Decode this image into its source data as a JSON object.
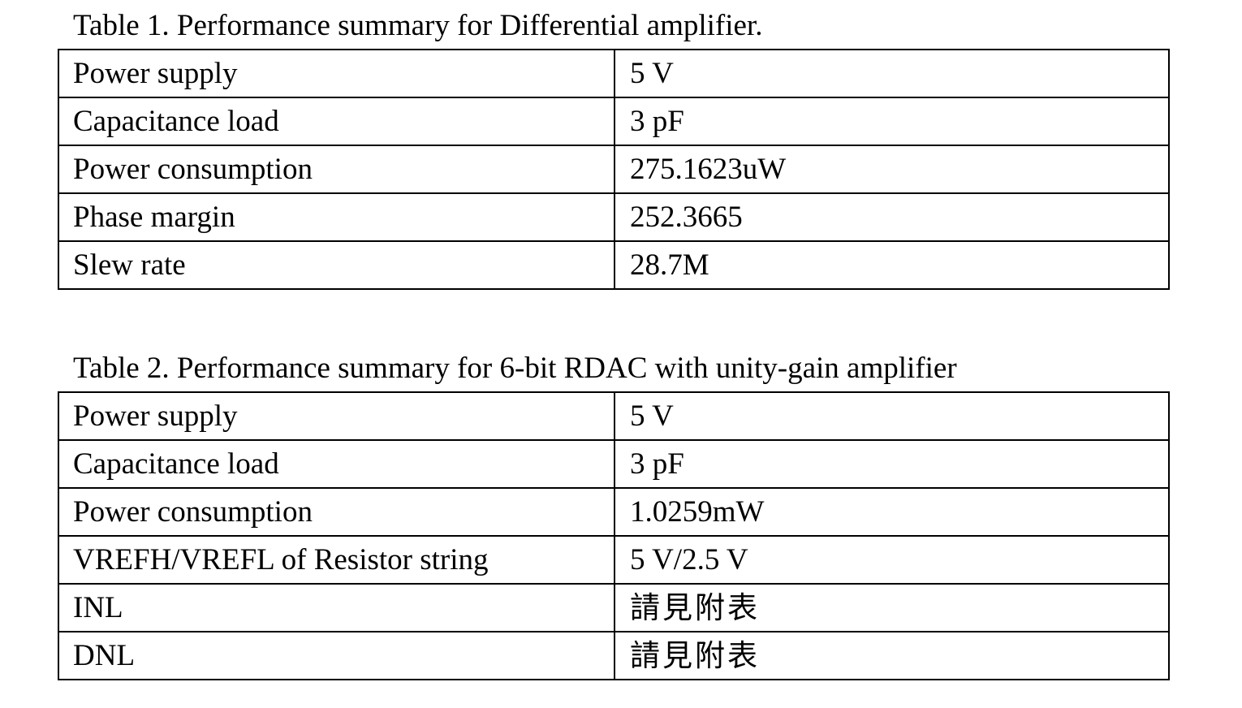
{
  "table1": {
    "caption": "Table 1. Performance summary for Differential amplifier.",
    "rows": [
      {
        "param": "Power supply",
        "value": "5 V"
      },
      {
        "param": "Capacitance load",
        "value": "3 pF"
      },
      {
        "param": "Power consumption",
        "value": "275.1623uW"
      },
      {
        "param": "Phase margin",
        "value": "252.3665"
      },
      {
        "param": "Slew rate",
        "value": "28.7M"
      }
    ]
  },
  "table2": {
    "caption": "Table 2. Performance summary for 6-bit RDAC with unity-gain amplifier",
    "rows": [
      {
        "param": "Power supply",
        "value": "5 V"
      },
      {
        "param": "Capacitance load",
        "value": "3 pF"
      },
      {
        "param": "Power consumption",
        "value": "1.0259mW"
      },
      {
        "param": "VREFH/VREFL of Resistor string",
        "value": "5 V/2.5 V"
      },
      {
        "param": "INL",
        "value": "請見附表"
      },
      {
        "param": "DNL",
        "value": "請見附表"
      }
    ]
  }
}
